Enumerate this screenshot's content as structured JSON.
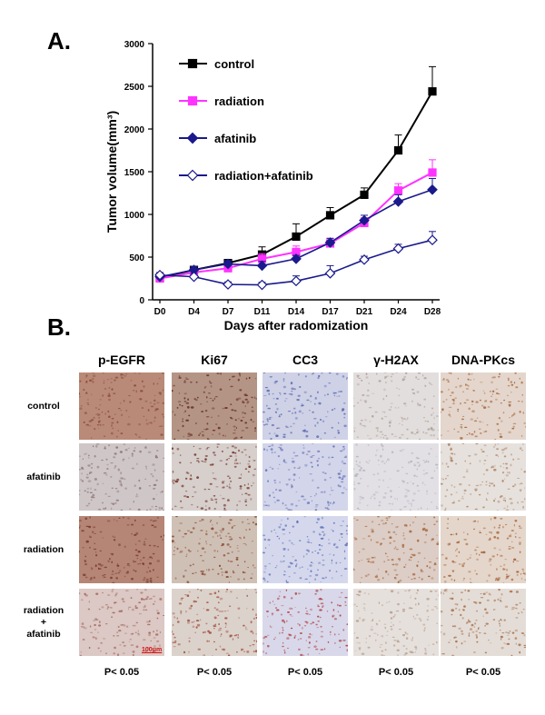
{
  "panel_a_label": "A.",
  "panel_b_label": "B.",
  "chart_data": {
    "type": "line",
    "x": [
      "D0",
      "D4",
      "D7",
      "D11",
      "D14",
      "D17",
      "D21",
      "D24",
      "D28"
    ],
    "xlabel": "Days after radomization",
    "ylabel": "Tumor volume(mm³)",
    "ylim": [
      0,
      3000
    ],
    "yticks": [
      0,
      500,
      1000,
      1500,
      2000,
      2500,
      3000
    ],
    "grid": false,
    "legend_position": "top-left",
    "series": [
      {
        "name": "control",
        "color": "#000000",
        "marker": "square",
        "filled": true,
        "values": [
          260,
          350,
          430,
          530,
          740,
          990,
          1230,
          1750,
          2440
        ],
        "errors": [
          30,
          40,
          40,
          90,
          150,
          90,
          80,
          180,
          290
        ]
      },
      {
        "name": "radiation",
        "color": "#ff33ff",
        "marker": "square",
        "filled": true,
        "values": [
          250,
          320,
          370,
          480,
          560,
          660,
          900,
          1280,
          1490
        ],
        "errors": [
          30,
          40,
          50,
          60,
          70,
          60,
          60,
          80,
          150
        ]
      },
      {
        "name": "afatinib",
        "color": "#1a1a8c",
        "marker": "diamond",
        "filled": true,
        "values": [
          270,
          350,
          420,
          400,
          480,
          670,
          930,
          1150,
          1290
        ],
        "errors": [
          30,
          40,
          40,
          50,
          40,
          50,
          60,
          80,
          130
        ]
      },
      {
        "name": "radiation+afatinib",
        "color": "#1a1a8c",
        "marker": "diamond",
        "filled": false,
        "values": [
          290,
          270,
          180,
          175,
          220,
          310,
          470,
          600,
          700
        ],
        "errors": [
          30,
          40,
          30,
          30,
          60,
          90,
          40,
          50,
          100
        ]
      }
    ]
  },
  "ihc": {
    "columns": [
      "p-EGFR",
      "Ki67",
      "CC3",
      "γ-H2AX",
      "DNA-PKcs"
    ],
    "rows": [
      {
        "label_line1": "control",
        "label_line2": "",
        "label_line3": ""
      },
      {
        "label_line1": "afatinib",
        "label_line2": "",
        "label_line3": ""
      },
      {
        "label_line1": "radiation",
        "label_line2": "",
        "label_line3": ""
      },
      {
        "label_line1": "radiation",
        "label_line2": "+",
        "label_line3": "afatinib"
      }
    ],
    "scale_bar": "100μm",
    "p_values": [
      "P< 0.05",
      "P< 0.05",
      "P< 0.05",
      "P< 0.05",
      "P< 0.05"
    ],
    "tile_colors": [
      [
        [
          "#b98a78",
          "#8a4a3a"
        ],
        [
          "#b49585",
          "#6a2e24"
        ],
        [
          "#cfd1e6",
          "#5a6ab0"
        ],
        [
          "#e2dedd",
          "#b0a39c"
        ],
        [
          "#e4d6cc",
          "#a86a40"
        ]
      ],
      [
        [
          "#cfc6c8",
          "#8f7878"
        ],
        [
          "#d6cfcc",
          "#7a3a30"
        ],
        [
          "#d3d5ea",
          "#6a78b8"
        ],
        [
          "#e2e0e4",
          "#b8b4c0"
        ],
        [
          "#e6e1dc",
          "#b08a70"
        ]
      ],
      [
        [
          "#b58676",
          "#7a3a2e"
        ],
        [
          "#cfc0b6",
          "#8a4a30"
        ],
        [
          "#d5d8ec",
          "#6070b8"
        ],
        [
          "#dccdc6",
          "#a86a3e"
        ],
        [
          "#e4d6cb",
          "#a8643a"
        ]
      ],
      [
        [
          "#dcc8c4",
          "#a06a60"
        ],
        [
          "#dcd2cc",
          "#a0503a"
        ],
        [
          "#d8d8ea",
          "#b04040"
        ],
        [
          "#e6e0dc",
          "#b8a090"
        ],
        [
          "#e4ddd7",
          "#a8704c"
        ]
      ]
    ]
  }
}
